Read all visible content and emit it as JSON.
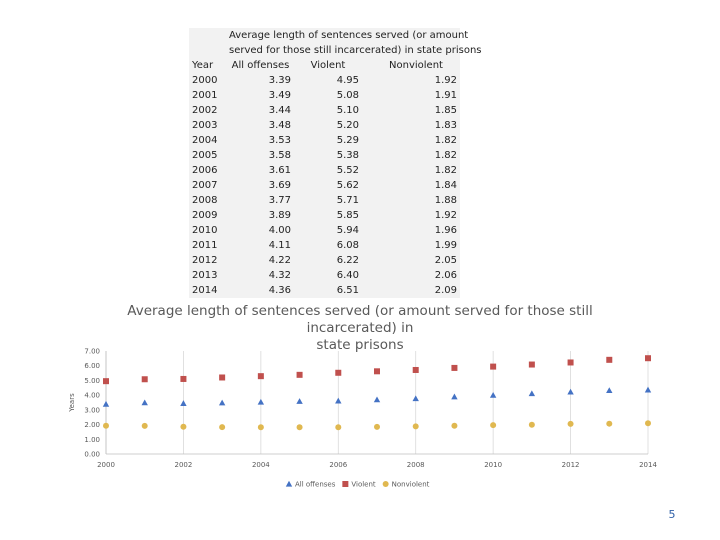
{
  "table": {
    "title_line1": "Average length of sentences served (or amount",
    "title_line2": "served for those still incarcerated) in state prisons",
    "year_header": "Year",
    "col_all": "All offenses",
    "col_violent": "Violent",
    "col_nonviolent": "Nonviolent",
    "rows": [
      {
        "year": "2000",
        "all": "3.39",
        "violent": "4.95",
        "nonviolent": "1.92"
      },
      {
        "year": "2001",
        "all": "3.49",
        "violent": "5.08",
        "nonviolent": "1.91"
      },
      {
        "year": "2002",
        "all": "3.44",
        "violent": "5.10",
        "nonviolent": "1.85"
      },
      {
        "year": "2003",
        "all": "3.48",
        "violent": "5.20",
        "nonviolent": "1.83"
      },
      {
        "year": "2004",
        "all": "3.53",
        "violent": "5.29",
        "nonviolent": "1.82"
      },
      {
        "year": "2005",
        "all": "3.58",
        "violent": "5.38",
        "nonviolent": "1.82"
      },
      {
        "year": "2006",
        "all": "3.61",
        "violent": "5.52",
        "nonviolent": "1.82"
      },
      {
        "year": "2007",
        "all": "3.69",
        "violent": "5.62",
        "nonviolent": "1.84"
      },
      {
        "year": "2008",
        "all": "3.77",
        "violent": "5.71",
        "nonviolent": "1.88"
      },
      {
        "year": "2009",
        "all": "3.89",
        "violent": "5.85",
        "nonviolent": "1.92"
      },
      {
        "year": "2010",
        "all": "4.00",
        "violent": "5.94",
        "nonviolent": "1.96"
      },
      {
        "year": "2011",
        "all": "4.11",
        "violent": "6.08",
        "nonviolent": "1.99"
      },
      {
        "year": "2012",
        "all": "4.22",
        "violent": "6.22",
        "nonviolent": "2.05"
      },
      {
        "year": "2013",
        "all": "4.32",
        "violent": "6.40",
        "nonviolent": "2.06"
      },
      {
        "year": "2014",
        "all": "4.36",
        "violent": "6.51",
        "nonviolent": "2.09"
      }
    ]
  },
  "chart_data": {
    "type": "scatter",
    "title": "Average length of sentences served (or amount served for those still incarcerated) in state prisons",
    "title_line1": "Average length of sentences served (or amount served for those still incarcerated) in",
    "title_line2": "state prisons",
    "xlabel": "",
    "ylabel": "Years",
    "xlim": [
      2000,
      2014
    ],
    "ylim": [
      0,
      7
    ],
    "x_ticks": [
      "2000",
      "2002",
      "2004",
      "2006",
      "2008",
      "2010",
      "2012",
      "2014"
    ],
    "y_ticks": [
      "0.00",
      "1.00",
      "2.00",
      "3.00",
      "4.00",
      "5.00",
      "6.00",
      "7.00"
    ],
    "grid": "vertical",
    "legend_position": "bottom",
    "x": [
      2000,
      2001,
      2002,
      2003,
      2004,
      2005,
      2006,
      2007,
      2008,
      2009,
      2010,
      2011,
      2012,
      2013,
      2014
    ],
    "series": [
      {
        "name": "All offenses",
        "marker": "triangle",
        "color": "#4472c4",
        "values": [
          3.39,
          3.49,
          3.44,
          3.48,
          3.53,
          3.58,
          3.61,
          3.69,
          3.77,
          3.89,
          4.0,
          4.11,
          4.22,
          4.32,
          4.36
        ]
      },
      {
        "name": "Violent",
        "marker": "square",
        "color": "#c0504d",
        "values": [
          4.95,
          5.08,
          5.1,
          5.2,
          5.29,
          5.38,
          5.52,
          5.62,
          5.71,
          5.85,
          5.94,
          6.08,
          6.22,
          6.4,
          6.51
        ]
      },
      {
        "name": "Nonviolent",
        "marker": "circle",
        "color": "#e0b850",
        "values": [
          1.92,
          1.91,
          1.85,
          1.83,
          1.82,
          1.82,
          1.82,
          1.84,
          1.88,
          1.92,
          1.96,
          1.99,
          2.05,
          2.06,
          2.09
        ]
      }
    ]
  },
  "page_number": "5"
}
